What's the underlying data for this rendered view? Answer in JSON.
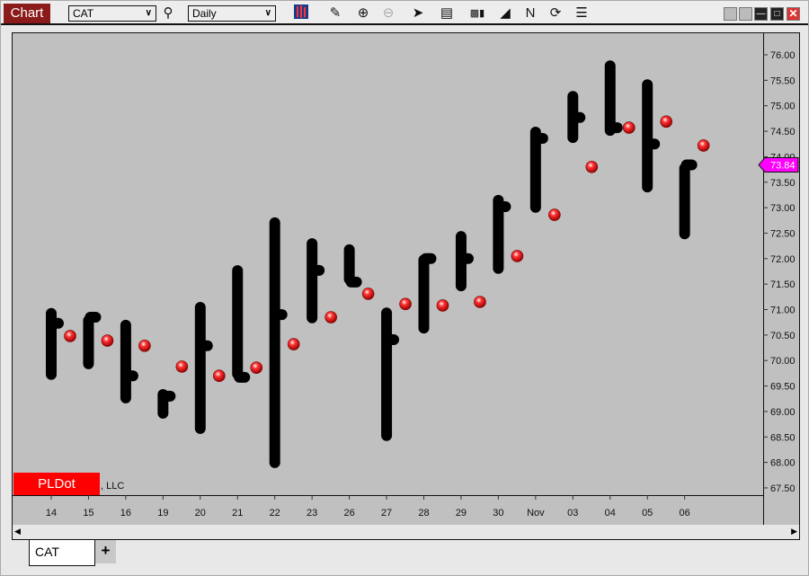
{
  "window": {
    "title": "Chart"
  },
  "toolbar": {
    "symbol": "CAT",
    "period": "Daily",
    "icons": [
      "search-icon",
      "bar-style-icon",
      "pencil-icon",
      "zoom-in-icon",
      "zoom-out-icon",
      "pointer-icon",
      "data-window-icon",
      "bar-spacing-icon",
      "steps-icon",
      "line-draw-icon",
      "refresh-icon",
      "list-icon"
    ]
  },
  "watermark": {
    "logo": "PLDot",
    "suffix": ", LLC"
  },
  "tabs": [
    {
      "label": "CAT"
    }
  ],
  "add_tab_label": "+",
  "colors": {
    "bars": "#000000",
    "pldot": "#ff0000",
    "last_price": "#ff00ff",
    "title_bg": "#8b1a1a",
    "plot_bg": "#c0c0c0"
  },
  "chart_data": {
    "type": "ohlc-bar",
    "symbol": "CAT",
    "ylim": [
      67.3,
      76.4
    ],
    "y_ticks": [
      "76.00",
      "75.50",
      "75.00",
      "74.50",
      "74.00",
      "73.50",
      "73.00",
      "72.50",
      "72.00",
      "71.50",
      "71.00",
      "70.50",
      "70.00",
      "69.50",
      "69.00",
      "68.50",
      "68.00",
      "67.50"
    ],
    "categories": [
      "14",
      "15",
      "16",
      "19",
      "20",
      "21",
      "22",
      "23",
      "26",
      "27",
      "28",
      "29",
      "30",
      "Nov",
      "03",
      "04",
      "05",
      "06"
    ],
    "high": [
      71.03,
      70.89,
      70.8,
      69.44,
      71.15,
      71.87,
      72.81,
      72.4,
      72.28,
      71.04,
      72.08,
      72.54,
      73.25,
      74.59,
      75.29,
      75.89,
      75.52,
      73.88
    ],
    "low": [
      69.62,
      69.83,
      69.16,
      68.86,
      68.56,
      69.63,
      67.89,
      70.73,
      71.49,
      68.42,
      70.53,
      71.36,
      71.7,
      72.9,
      74.27,
      74.41,
      73.3,
      72.38
    ],
    "close": [
      70.73,
      70.85,
      69.7,
      69.3,
      70.29,
      69.67,
      70.9,
      71.77,
      71.54,
      70.41,
      72.0,
      72.0,
      73.02,
      74.36,
      74.77,
      74.57,
      74.25,
      73.84
    ],
    "pldot": [
      70.48,
      70.39,
      70.29,
      69.88,
      69.7,
      69.86,
      70.32,
      70.85,
      71.31,
      71.11,
      71.08,
      71.15,
      72.05,
      72.86,
      73.8,
      74.57,
      74.69,
      74.22
    ],
    "last_price": "73.84"
  }
}
